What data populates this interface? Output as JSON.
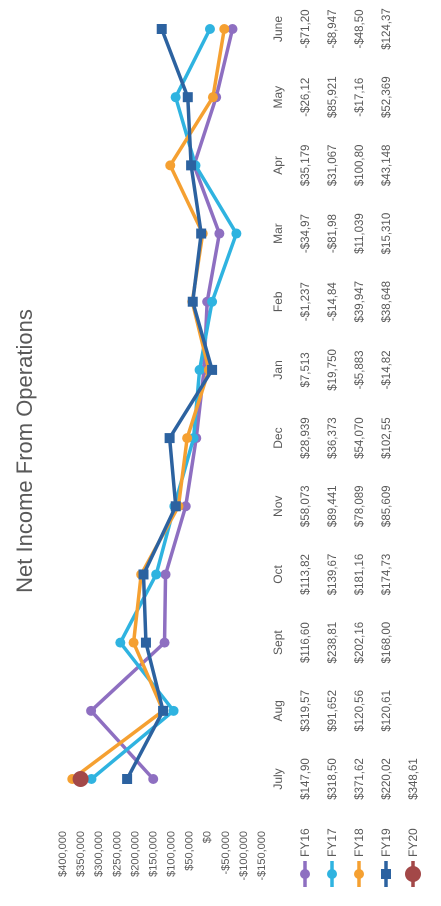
{
  "chart_data": {
    "type": "line",
    "title": "Net Income From Operations",
    "categories": [
      "July",
      "Aug",
      "Sept",
      "Oct",
      "Nov",
      "Dec",
      "Jan",
      "Feb",
      "Mar",
      "Apr",
      "May",
      "June"
    ],
    "ylim": [
      -150000,
      400000
    ],
    "yticks": [
      400000,
      350000,
      300000,
      250000,
      200000,
      150000,
      100000,
      50000,
      0,
      -50000,
      -100000,
      -150000
    ],
    "ytick_labels": [
      "$400,000",
      "$350,000",
      "$300,000",
      "$250,000",
      "$200,000",
      "$150,000",
      "$100,000",
      "$50,000",
      "$0",
      "-$50,000",
      "-$100,000",
      "-$150,000"
    ],
    "grid": false,
    "legend_position": "bottom (data table)",
    "orientation": "rotated 90° counter-clockwise",
    "series": [
      {
        "name": "FY16",
        "color": "#8e6fc1",
        "marker": "circle",
        "values": [
          147900,
          319570,
          116600,
          113820,
          58073,
          28939,
          7513,
          -1237,
          -34970,
          35179,
          -26120,
          -71200
        ],
        "table": [
          "$147,90",
          "$319,57",
          "$116,60",
          "$113,82",
          "$58,073",
          "$28,939",
          "$7,513",
          "-$1,237",
          "-$34,97",
          "$35,179",
          "-$26,12",
          "-$71,20"
        ]
      },
      {
        "name": "FY17",
        "color": "#2fb3e0",
        "marker": "circle",
        "values": [
          318500,
          91652,
          238810,
          139670,
          89441,
          36373,
          19750,
          -14840,
          -81980,
          31067,
          85921,
          -8947
        ],
        "table": [
          "$318,50",
          "$91,652",
          "$238,81",
          "$139,67",
          "$89,441",
          "$36,373",
          "$19,750",
          "-$14,84",
          "-$81,98",
          "$31,067",
          "$85,921",
          "-$8,947"
        ]
      },
      {
        "name": "FY18",
        "color": "#f5a031",
        "marker": "circle",
        "values": [
          371620,
          120560,
          202160,
          181160,
          78089,
          54070,
          -5883,
          39947,
          11039,
          100800,
          -17160,
          -48500
        ],
        "table": [
          "$371,62",
          "$120,56",
          "$202,16",
          "$181,16",
          "$78,089",
          "$54,070",
          "-$5,883",
          "$39,947",
          "$11,039",
          "$100,80",
          "-$17,16",
          "-$48,50"
        ]
      },
      {
        "name": "FY19",
        "color": "#2c62a0",
        "marker": "square",
        "values": [
          220020,
          120610,
          168000,
          174730,
          85609,
          102550,
          -14820,
          38648,
          15310,
          43148,
          52369,
          124370
        ],
        "table": [
          "$220,02",
          "$120,61",
          "$168,00",
          "$174,73",
          "$85,609",
          "$102,55",
          "-$14,82",
          "$38,648",
          "$15,310",
          "$43,148",
          "$52,369",
          "$124,37"
        ]
      },
      {
        "name": "FY20",
        "color": "#a34848",
        "marker": "circle",
        "values": [
          348610,
          null,
          null,
          null,
          null,
          null,
          null,
          null,
          null,
          null,
          null,
          null
        ],
        "table": [
          "$348,61",
          "",
          "",
          "",
          "",
          "",
          "",
          "",
          "",
          "",
          "",
          ""
        ]
      }
    ]
  }
}
